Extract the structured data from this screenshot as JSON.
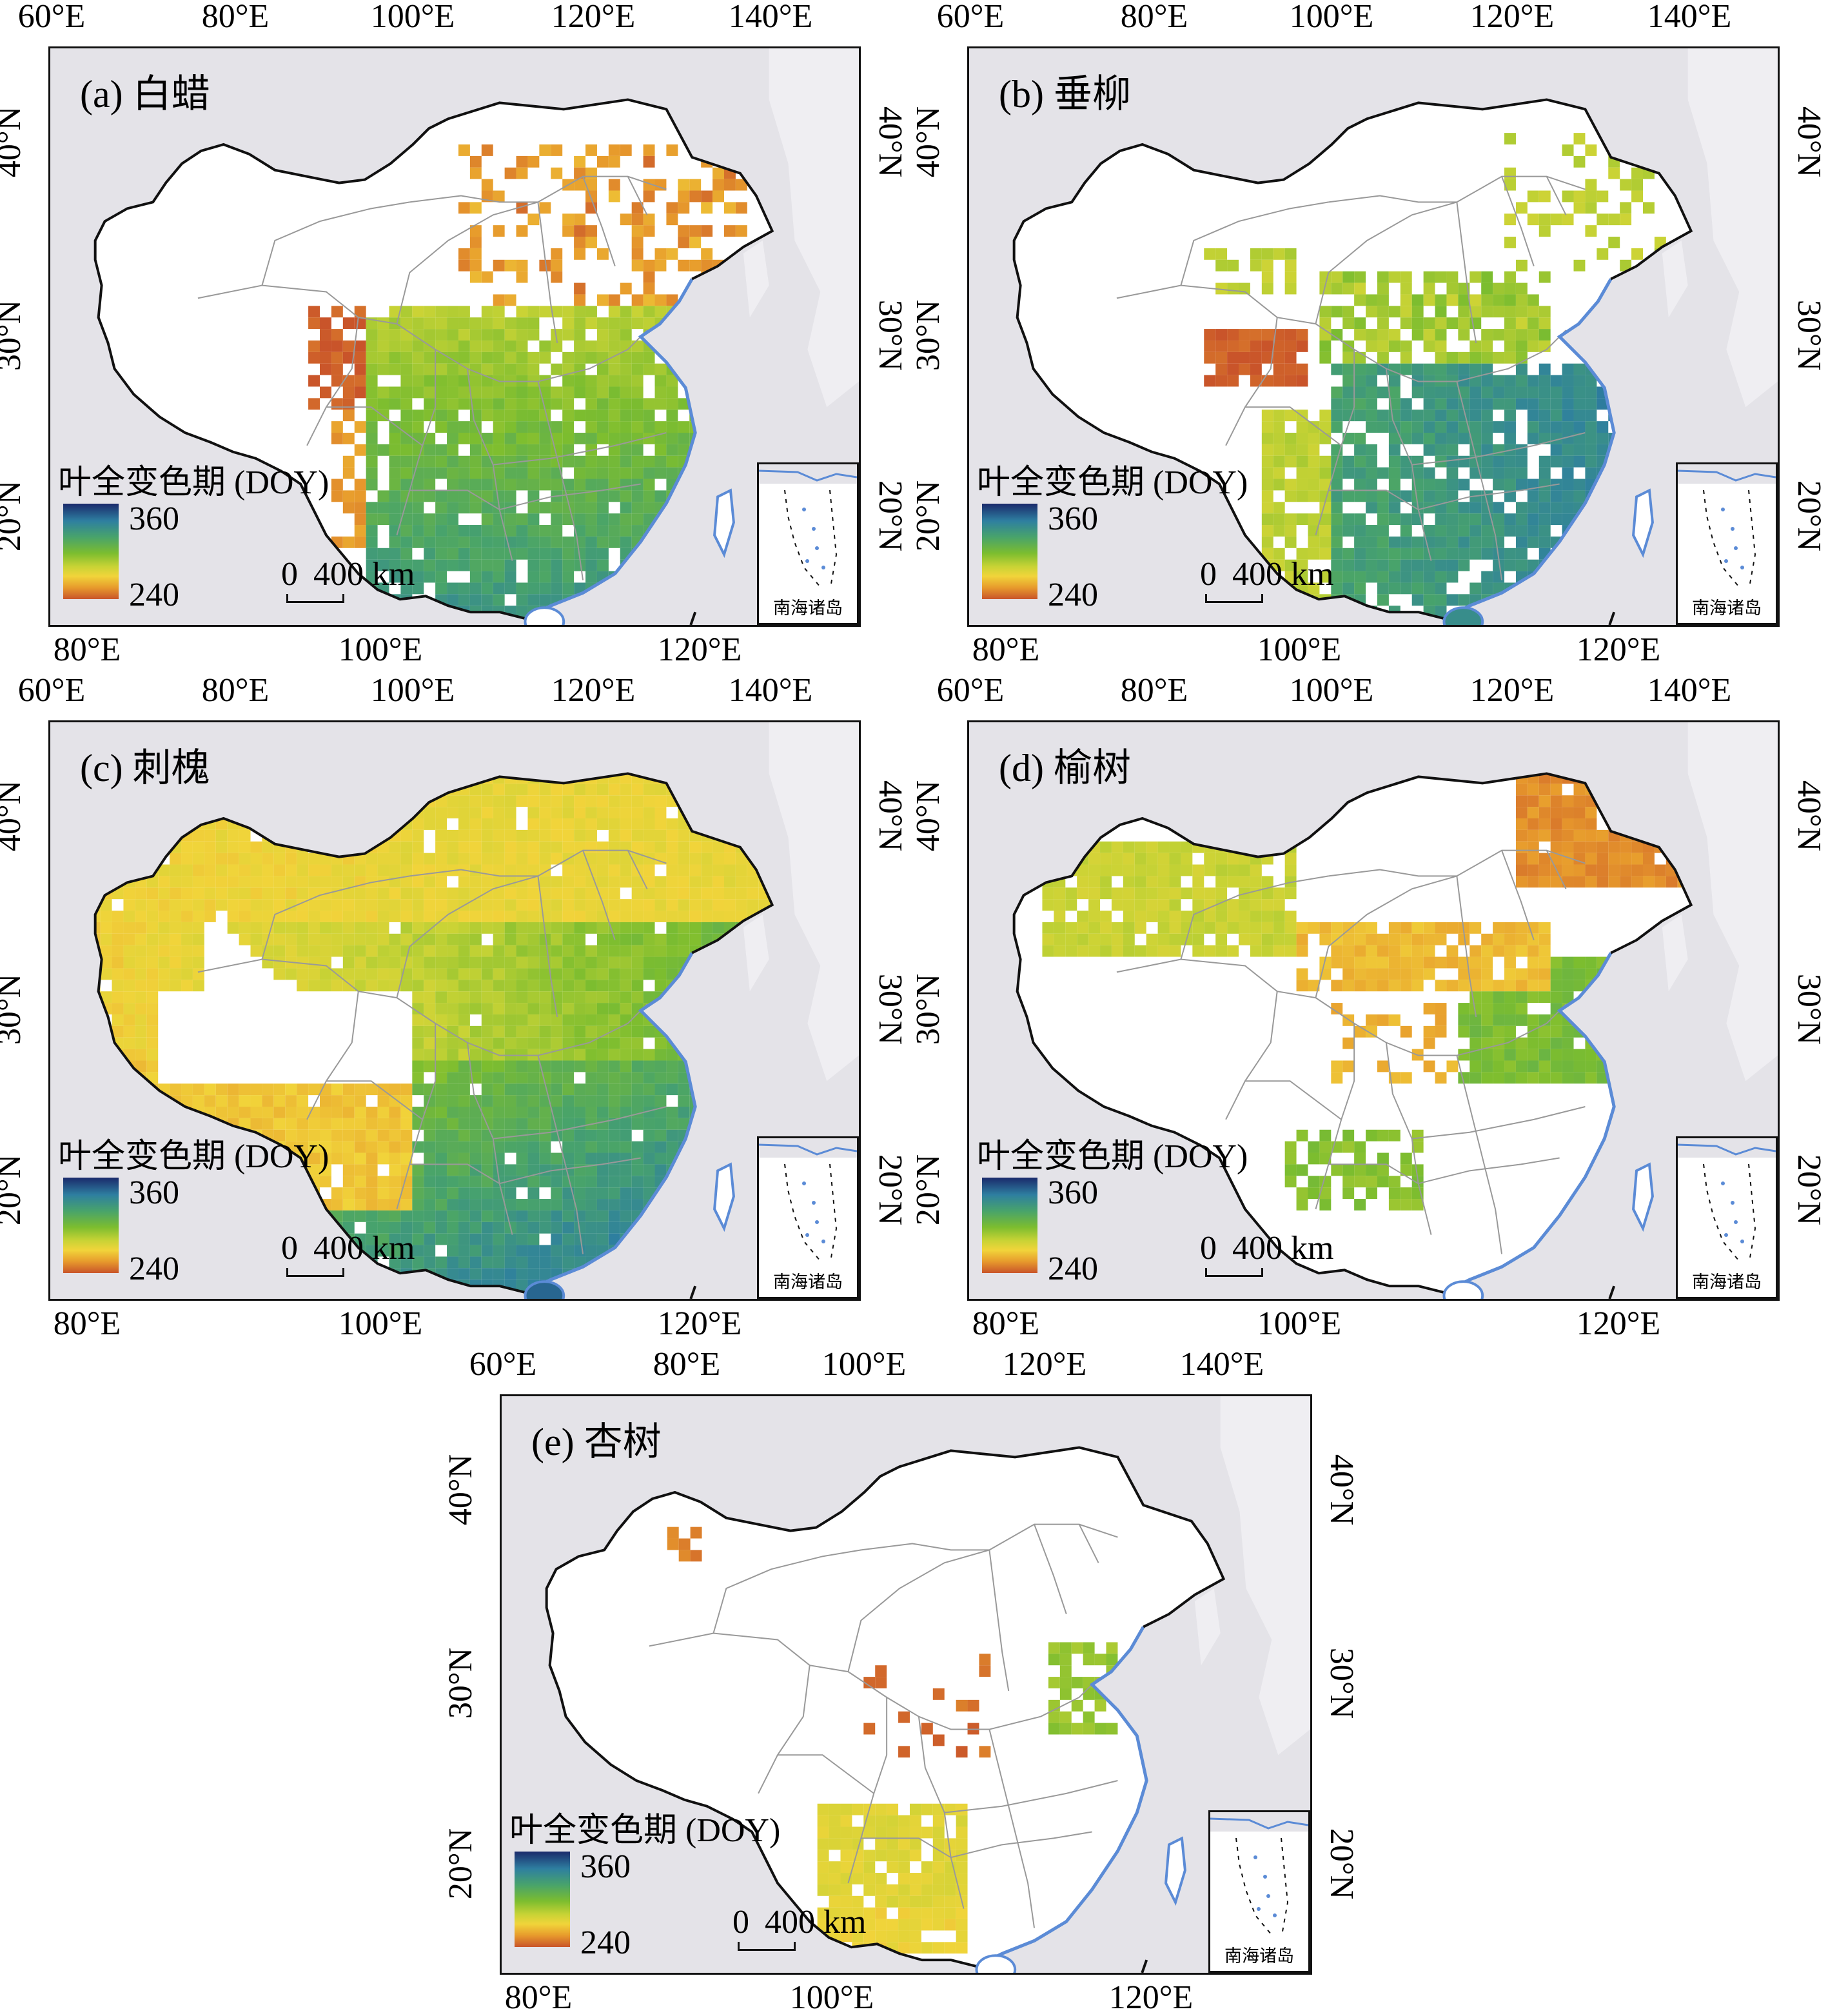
{
  "panels": [
    {
      "id": "a",
      "title": "(a) 白蜡",
      "pattern": "ash"
    },
    {
      "id": "b",
      "title": "(b) 垂柳",
      "pattern": "willow"
    },
    {
      "id": "c",
      "title": "(c) 刺槐",
      "pattern": "locust"
    },
    {
      "id": "d",
      "title": "(d) 榆树",
      "pattern": "elm"
    },
    {
      "id": "e",
      "title": "(e) 杏树",
      "pattern": "apricot"
    }
  ],
  "axes": {
    "top_ticks": [
      "60°E",
      "80°E",
      "100°E",
      "120°E",
      "140°E"
    ],
    "bottom_ticks": [
      "80°E",
      "100°E",
      "120°E"
    ],
    "lat_ticks": [
      "40°N",
      "30°N",
      "20°N"
    ]
  },
  "legend": {
    "title": "叶全变色期 (DOY)",
    "max_label": "360",
    "min_label": "240",
    "color_stops": [
      "#1a2a6b",
      "#2e7fa0",
      "#48a36b",
      "#7cbd2f",
      "#c9d335",
      "#f1d43a",
      "#e79a2c",
      "#c9542a"
    ]
  },
  "scale_bar": {
    "zero": "0",
    "label": "400 km"
  },
  "inset": {
    "label": "南海诸岛"
  },
  "colors": {
    "ocean": "#e4e3e8",
    "land": "#ffffff",
    "border": "#111111",
    "province": "#999999",
    "coast": "#5b8bd6"
  }
}
